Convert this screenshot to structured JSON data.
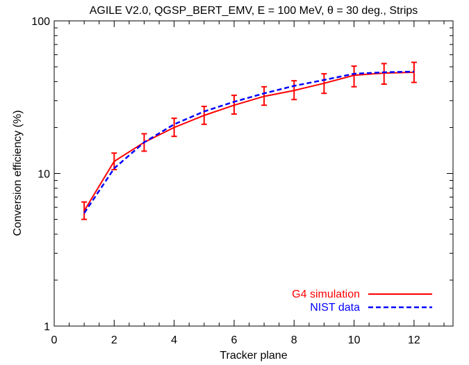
{
  "chart_data": {
    "type": "line",
    "title": "AGILE V2.0, QGSP_BERT_EMV, E = 100 MeV, θ = 30 deg., Strips",
    "xlabel": "Tracker plane",
    "ylabel": "Conversion efficiency (%)",
    "xlim": [
      0,
      13.3
    ],
    "ylim": [
      1,
      100
    ],
    "yscale": "log",
    "x_ticks": [
      0,
      2,
      4,
      6,
      8,
      10,
      12
    ],
    "x_tick_labels": [
      "0",
      "2",
      "4",
      "6",
      "8",
      "10",
      "12"
    ],
    "y_ticks": [
      1,
      10,
      100
    ],
    "y_tick_labels": [
      "1",
      "10",
      "100"
    ],
    "legend_position": "bottom-right",
    "series": [
      {
        "name": "G4 simulation",
        "color": "#ff0000",
        "style": "solid",
        "x": [
          1,
          2,
          3,
          4,
          5,
          6,
          7,
          8,
          9,
          10,
          11,
          12
        ],
        "values": [
          5.7,
          12.0,
          16.0,
          20.0,
          24.0,
          28.0,
          32.0,
          35.0,
          39.0,
          44.0,
          45.5,
          46.0
        ],
        "err_low": [
          5.0,
          10.6,
          14.0,
          17.5,
          21.0,
          24.5,
          28.0,
          30.5,
          33.5,
          37.0,
          38.5,
          39.5
        ],
        "err_high": [
          6.5,
          13.6,
          18.2,
          23.0,
          27.5,
          32.5,
          37.0,
          40.5,
          45.0,
          50.5,
          52.5,
          53.5
        ]
      },
      {
        "name": "NIST data",
        "color": "#0000ff",
        "style": "dashed",
        "x": [
          1,
          2,
          3,
          4,
          5,
          6,
          7,
          8,
          9,
          10,
          11,
          12
        ],
        "values": [
          5.5,
          10.8,
          16.0,
          21.0,
          25.5,
          29.5,
          33.5,
          37.5,
          41.0,
          45.0,
          46.0,
          46.5
        ]
      }
    ]
  }
}
